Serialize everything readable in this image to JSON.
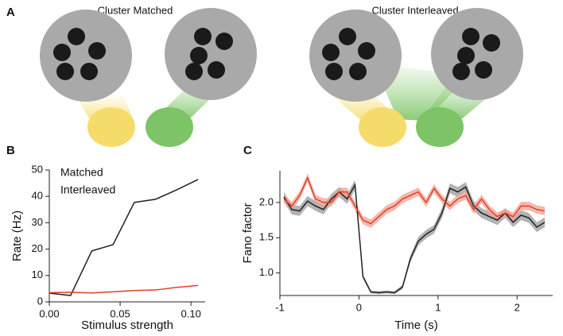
{
  "diagram": {
    "panel_label": "A",
    "titles": [
      "Cluster Matched",
      "Cluster Interleaved"
    ]
  },
  "chart_data": [
    {
      "type": "line",
      "panel_label": "B",
      "x_label": "Stimulus strength",
      "y_label": "Rate (Hz)",
      "x": [
        0,
        0.015,
        0.03,
        0.045,
        0.06,
        0.075,
        0.09,
        0.105
      ],
      "series": [
        {
          "name": "Matched",
          "color": "#222222",
          "values": [
            3.3,
            2.4,
            19.3,
            21.7,
            37.7,
            38.9,
            42.5,
            46.4
          ]
        },
        {
          "name": "Interleaved",
          "color": "#e0402a",
          "values": [
            3.5,
            3.6,
            3.4,
            3.8,
            4.3,
            4.5,
            5.5,
            6.2
          ]
        }
      ],
      "xlim": [
        0,
        0.11
      ],
      "ylim": [
        0,
        50
      ],
      "xticks": [
        {
          "value": 0,
          "label": "0.00"
        },
        0.05,
        {
          "value": 0.1,
          "label": "0.10"
        }
      ],
      "yticks": [
        0,
        10,
        20,
        30,
        40,
        50
      ],
      "legend": "upper-left",
      "grid": false
    },
    {
      "type": "line",
      "panel_label": "C",
      "x_label": "Time (s)",
      "y_label": "Fano factor",
      "x": [
        -0.95,
        -0.85,
        -0.75,
        -0.65,
        -0.55,
        -0.45,
        -0.35,
        -0.25,
        -0.15,
        -0.05,
        0.05,
        0.15,
        0.25,
        0.35,
        0.45,
        0.55,
        0.65,
        0.75,
        0.85,
        0.95,
        1.05,
        1.15,
        1.25,
        1.35,
        1.45,
        1.55,
        1.65,
        1.75,
        1.85,
        1.95,
        2.05,
        2.15,
        2.25,
        2.35
      ],
      "series": [
        {
          "color": "#222222",
          "band_color": "#9a9a9a",
          "values": [
            2.08,
            1.9,
            1.88,
            2.02,
            1.95,
            1.9,
            2.05,
            2.15,
            2.05,
            2.25,
            0.95,
            0.73,
            0.72,
            0.73,
            0.72,
            0.8,
            1.2,
            1.45,
            1.55,
            1.62,
            1.85,
            2.2,
            2.15,
            2.22,
            1.95,
            1.85,
            1.8,
            1.75,
            1.85,
            1.72,
            1.82,
            1.78,
            1.65,
            1.72
          ],
          "errors": [
            0.07,
            0.07,
            0.07,
            0.07,
            0.07,
            0.07,
            0.07,
            0.07,
            0.07,
            0.07,
            0.03,
            0.02,
            0.02,
            0.02,
            0.02,
            0.03,
            0.05,
            0.06,
            0.06,
            0.06,
            0.07,
            0.07,
            0.07,
            0.07,
            0.07,
            0.07,
            0.07,
            0.07,
            0.07,
            0.07,
            0.07,
            0.07,
            0.07,
            0.07
          ]
        },
        {
          "color": "#e0402a",
          "band_color": "#f2a090",
          "values": [
            2.05,
            1.95,
            2.1,
            2.35,
            2.05,
            2.0,
            2.0,
            2.15,
            2.15,
            1.95,
            1.75,
            1.7,
            1.8,
            1.9,
            1.95,
            2.05,
            2.1,
            2.15,
            2.0,
            2.2,
            2.05,
            1.95,
            2.05,
            2.1,
            1.9,
            2.05,
            1.9,
            1.8,
            1.85,
            1.8,
            1.95,
            1.95,
            1.9,
            1.88
          ],
          "errors": [
            0.06,
            0.06,
            0.06,
            0.06,
            0.06,
            0.06,
            0.06,
            0.06,
            0.06,
            0.06,
            0.06,
            0.06,
            0.06,
            0.06,
            0.06,
            0.06,
            0.06,
            0.06,
            0.06,
            0.06,
            0.06,
            0.06,
            0.06,
            0.06,
            0.06,
            0.06,
            0.06,
            0.06,
            0.06,
            0.06,
            0.06,
            0.06,
            0.06,
            0.06
          ]
        }
      ],
      "xlim": [
        -1,
        2.45
      ],
      "ylim": [
        0.68,
        2.45
      ],
      "xticks": [
        -1,
        0,
        1,
        2
      ],
      "yticks": [
        {
          "value": 1,
          "label": "1.0"
        },
        1.5,
        {
          "value": 2,
          "label": "2.0"
        }
      ],
      "grid": false
    }
  ]
}
